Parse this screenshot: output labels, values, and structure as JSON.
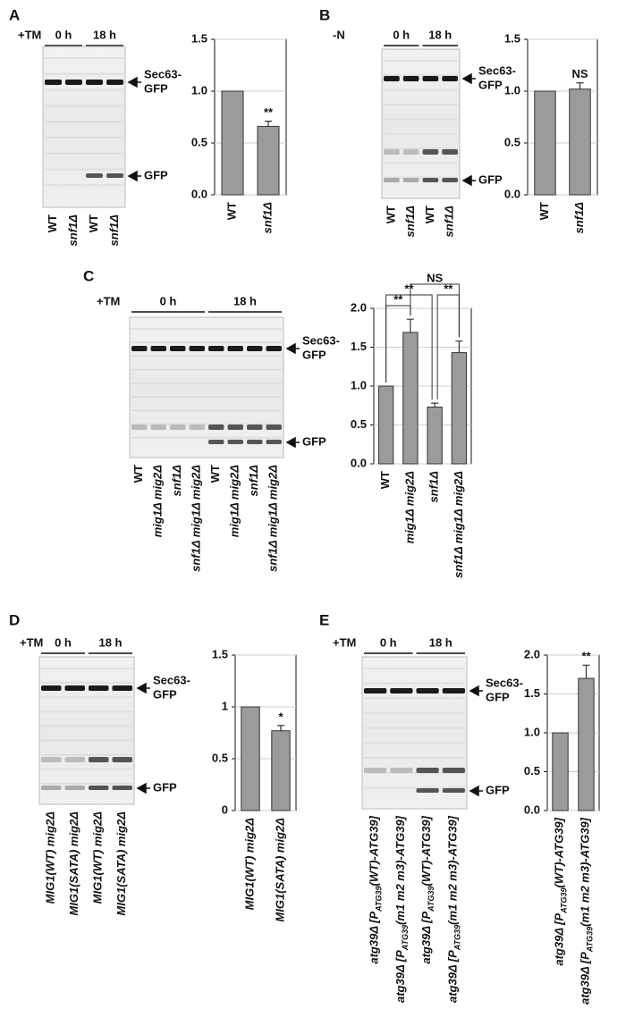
{
  "figure": {
    "panels": [
      {
        "label": "A",
        "blot": {
          "treatment": "+TM",
          "timepoints": [
            "0 h",
            "18 h"
          ],
          "lanes": [
            "WT",
            "snf1Δ",
            "WT",
            "snf1Δ"
          ],
          "lane_italic": [
            false,
            true,
            false,
            true
          ],
          "bands": [
            [
              "Sec63-",
              "GFP"
            ],
            [
              "GFP"
            ]
          ]
        }
      },
      {
        "label": "B",
        "blot": {
          "treatment": "-N",
          "timepoints": [
            "0 h",
            "18 h"
          ],
          "lanes": [
            "WT",
            "snf1Δ",
            "WT",
            "snf1Δ"
          ],
          "lane_italic": [
            false,
            true,
            false,
            true
          ],
          "bands": [
            [
              "Sec63-",
              "GFP"
            ],
            [
              "GFP"
            ]
          ]
        }
      },
      {
        "label": "C",
        "blot": {
          "treatment": "+TM",
          "timepoints": [
            "0 h",
            "18 h"
          ],
          "lanes": [
            "WT",
            "mig1Δ mig2Δ",
            "snf1Δ",
            "snf1Δ mig1Δ mig2Δ",
            "WT",
            "mig1Δ mig2Δ",
            "snf1Δ",
            "snf1Δ mig1Δ mig2Δ"
          ],
          "lane_italic": [
            false,
            true,
            true,
            true,
            false,
            true,
            true,
            true
          ],
          "bands": [
            [
              "Sec63-",
              "GFP"
            ],
            [
              "GFP"
            ]
          ]
        }
      },
      {
        "label": "D",
        "blot": {
          "treatment": "+TM",
          "timepoints": [
            "0 h",
            "18 h"
          ],
          "lanes": [
            "MIG1(WT) mig2Δ",
            "MIG1(SATA) mig2Δ",
            "MIG1(WT) mig2Δ",
            "MIG1(SATA) mig2Δ"
          ],
          "lane_italic": [
            true,
            true,
            true,
            true
          ],
          "bands": [
            [
              "Sec63-",
              "GFP"
            ],
            [
              "GFP"
            ]
          ]
        }
      },
      {
        "label": "E",
        "blot": {
          "treatment": "+TM",
          "timepoints": [
            "0 h",
            "18 h"
          ],
          "lanes": [
            [
              "atg39Δ [P",
              "ATG39",
              "(WT)-ATG39]"
            ],
            [
              "atg39Δ [P",
              "ATG39",
              "(m1 m2 m3)-ATG39]"
            ],
            [
              "atg39Δ [P",
              "ATG39",
              "(WT)-ATG39]"
            ],
            [
              "atg39Δ [P",
              "ATG39",
              "(m1 m2 m3)-ATG39]"
            ]
          ],
          "lane_italic": [
            true,
            true,
            true,
            true
          ],
          "bands": [
            [
              "Sec63-",
              "GFP"
            ],
            [
              "GFP"
            ]
          ]
        }
      }
    ]
  },
  "chart_data": [
    {
      "type": "bar",
      "categories": [
        "WT",
        "snf1Δ"
      ],
      "category_italic": [
        false,
        true
      ],
      "values": [
        1.0,
        0.66
      ],
      "errors": [
        null,
        0.05
      ],
      "annotations": [
        null,
        "**"
      ],
      "color": "#9b9b9b",
      "ylim": [
        0,
        1.5
      ],
      "yticks": [
        {
          "value": 0,
          "label": "0.0"
        },
        0.5,
        {
          "value": 1,
          "label": "1.0"
        },
        1.5
      ],
      "grid": true
    },
    {
      "type": "bar",
      "categories": [
        "WT",
        "snf1Δ"
      ],
      "category_italic": [
        false,
        true
      ],
      "values": [
        1.0,
        1.02
      ],
      "errors": [
        null,
        0.06
      ],
      "annotations": [
        null,
        "NS"
      ],
      "color": "#9b9b9b",
      "ylim": [
        0,
        1.5
      ],
      "yticks": [
        {
          "value": 0,
          "label": "0.0"
        },
        0.5,
        {
          "value": 1,
          "label": "1.0"
        },
        1.5
      ],
      "grid": true
    },
    {
      "type": "bar",
      "categories": [
        "WT",
        "mig1Δ mig2Δ",
        "snf1Δ",
        "snf1Δ mig1Δ mig2Δ"
      ],
      "category_italic": [
        false,
        true,
        true,
        true
      ],
      "values": [
        1.0,
        1.69,
        0.73,
        1.43
      ],
      "errors": [
        null,
        0.17,
        0.05,
        0.15
      ],
      "comparisons": [
        "**",
        "**",
        "NS",
        "**"
      ],
      "color": "#9b9b9b",
      "ylim": [
        0,
        2
      ],
      "yticks": [
        {
          "value": 0,
          "label": "0.0"
        },
        0.5,
        {
          "value": 1,
          "label": "1.0"
        },
        1.5,
        {
          "value": 2,
          "label": "2.0"
        }
      ],
      "grid": true
    },
    {
      "type": "bar",
      "categories": [
        "MIG1(WT) mig2Δ",
        "MIG1(SATA) mig2Δ"
      ],
      "category_italic": [
        true,
        true
      ],
      "values": [
        1,
        0.77
      ],
      "errors": [
        null,
        0.05
      ],
      "annotations": [
        null,
        "*"
      ],
      "color": "#9b9b9b",
      "ylim": [
        0,
        1.5
      ],
      "yticks": [
        0,
        0.5,
        1,
        1.5
      ],
      "grid": true
    },
    {
      "type": "bar",
      "categories": [
        [
          "atg39Δ [P",
          "ATG39",
          "(WT)-ATG39]"
        ],
        [
          "atg39Δ [P",
          "ATG39",
          "(m1 m2 m3)-ATG39]"
        ]
      ],
      "category_italic": [
        true,
        true
      ],
      "values": [
        1.0,
        1.7
      ],
      "errors": [
        null,
        0.17
      ],
      "annotations": [
        null,
        "**"
      ],
      "color": "#9b9b9b",
      "ylim": [
        0,
        2
      ],
      "yticks": [
        {
          "value": 0,
          "label": "0.0"
        },
        0.5,
        {
          "value": 1,
          "label": "1.0"
        },
        1.5,
        {
          "value": 2,
          "label": "2.0"
        }
      ],
      "grid": true
    }
  ]
}
